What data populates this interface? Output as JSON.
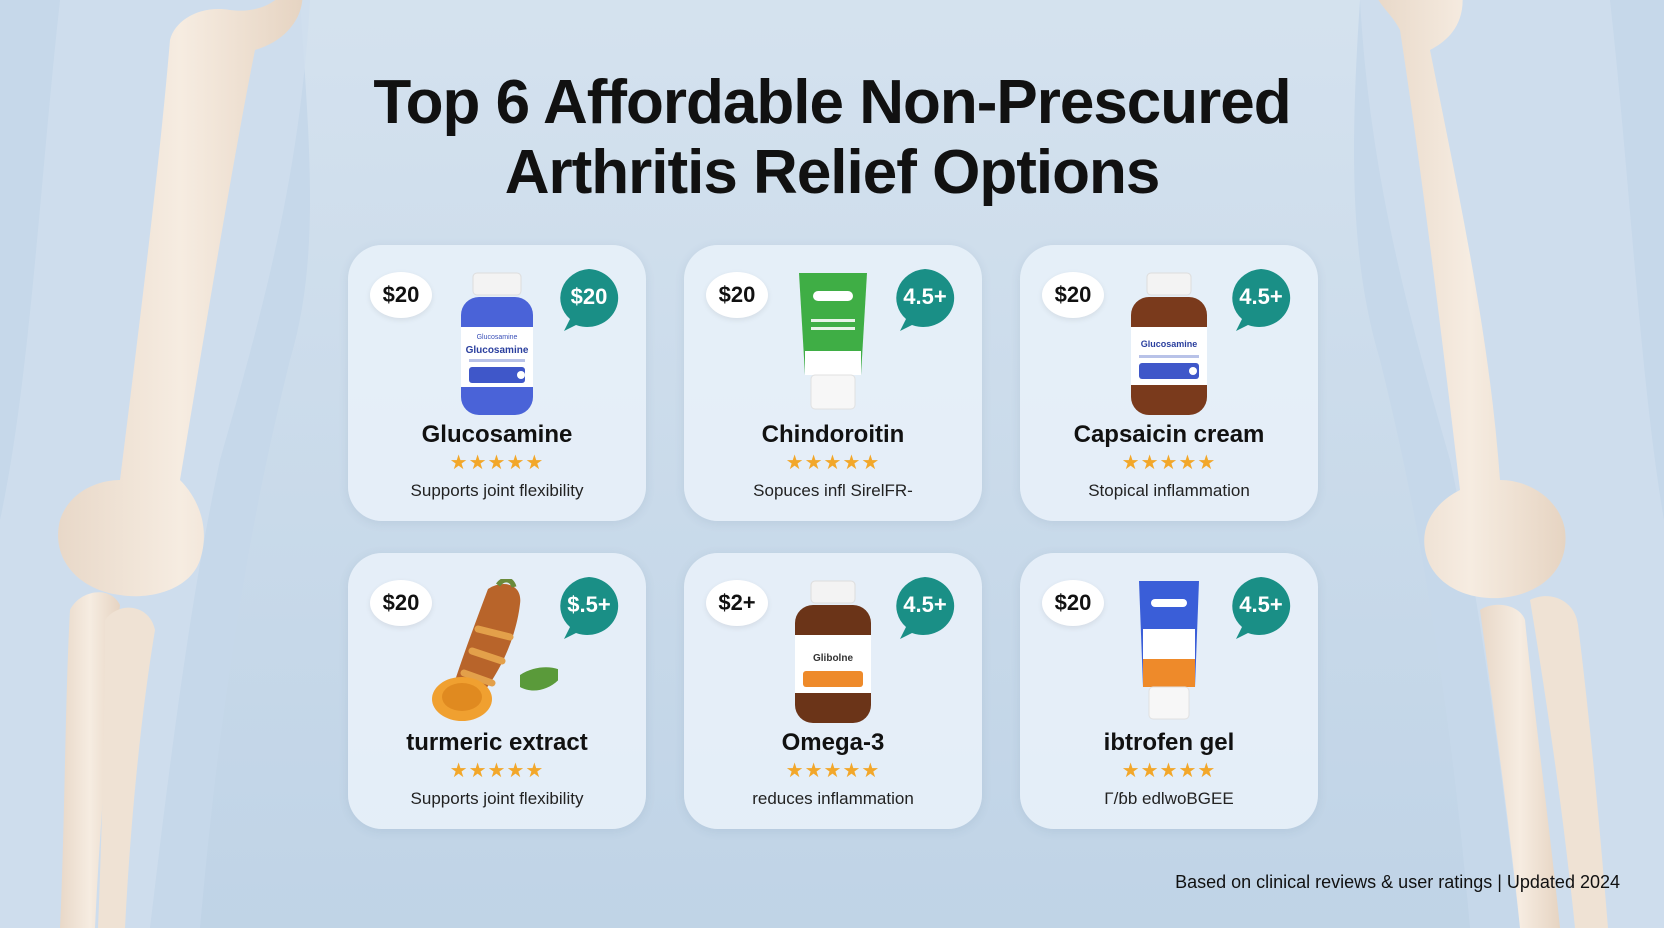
{
  "title": {
    "line1": "Top 6 Affordable Non-Prescured",
    "line2": "Arthritis Relief Options"
  },
  "colors": {
    "background": "#c9d9e8",
    "rating_bubble": "#1a8f86",
    "stars": "#f2a72a",
    "bone": "#f2e6da"
  },
  "cards": [
    {
      "price": "$20",
      "rating": "$20",
      "name": "Glucosamine",
      "stars": "★★★★★",
      "description": "Supports joint flexibility",
      "product_icon": "blue-supplement-bottle-icon",
      "label_top": "Glucosamine",
      "label_main": "Glucosamine"
    },
    {
      "price": "$20",
      "rating": "4.5+",
      "name": "Chindoroitin",
      "stars": "★★★★★",
      "description": "Sopuces infl SirelFR-",
      "product_icon": "green-cream-tube-icon"
    },
    {
      "price": "$20",
      "rating": "4.5+",
      "name": "Capsaicin cream",
      "stars": "★★★★★",
      "description": "Stopical inflammation",
      "product_icon": "amber-supplement-bottle-icon",
      "label_main": "Glucosamine"
    },
    {
      "price": "$20",
      "rating": "$.5+",
      "name": "turmeric extract",
      "stars": "★★★★★",
      "description": "Supports joint flexibility",
      "product_icon": "turmeric-root-icon"
    },
    {
      "price": "$2+",
      "rating": "4.5+",
      "name": "Omega-3",
      "stars": "★★★★★",
      "description": "reduces inflammation",
      "product_icon": "omega-3-bottle-icon",
      "label_main": "Glibolne"
    },
    {
      "price": "$20",
      "rating": "4.5+",
      "name": "ibtrofen gel",
      "stars": "★★★★★",
      "description": "Γ/ɓb edlwoBGEE",
      "product_icon": "blue-gel-tube-icon"
    }
  ],
  "footer": "Based on clinical reviews & user ratings | Updated 2024"
}
